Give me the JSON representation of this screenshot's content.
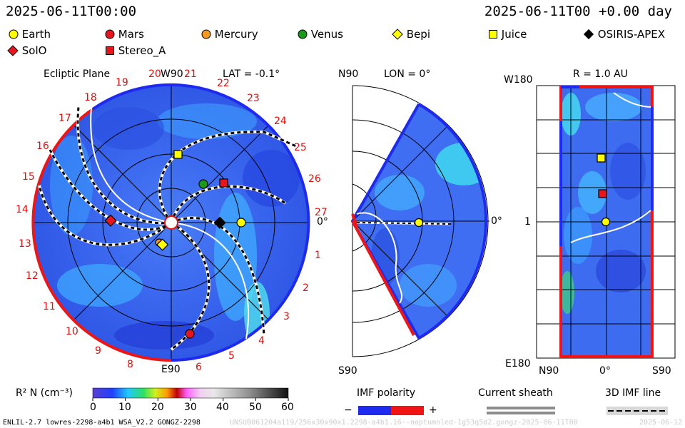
{
  "header": {
    "datetime_left": "2025-06-11T00:00",
    "datetime_right": "2025-06-11T00 +0.00 day"
  },
  "legend": [
    {
      "name": "Earth",
      "shape": "circle",
      "color": "#ffff00"
    },
    {
      "name": "Mars",
      "shape": "circle",
      "color": "#e8141e"
    },
    {
      "name": "Mercury",
      "shape": "circle",
      "color": "#f59a1f"
    },
    {
      "name": "Venus",
      "shape": "circle",
      "color": "#1a9a1a"
    },
    {
      "name": "Bepi",
      "shape": "diamond",
      "color": "#ffff00"
    },
    {
      "name": "Juice",
      "shape": "square",
      "color": "#ffff00"
    },
    {
      "name": "OSIRIS-APEX",
      "shape": "diamond",
      "color": "#000000"
    },
    {
      "name": "SolO",
      "shape": "diamond",
      "color": "#e8141e"
    },
    {
      "name": "Stereo_A",
      "shape": "square",
      "color": "#e8141e"
    }
  ],
  "chart_data": [
    {
      "type": "heatmap",
      "panel": "ecliptic",
      "title": "Ecliptic Plane",
      "lat_label": "LAT = -0.1°",
      "top_label": "W90",
      "bottom_label": "E90",
      "right_label": "0°",
      "rotation_labels": [
        "1",
        "2",
        "3",
        "4",
        "5",
        "6",
        "8",
        "9",
        "10",
        "11",
        "12",
        "13",
        "14",
        "15",
        "16",
        "17",
        "18",
        "19",
        "20",
        "21",
        "22",
        "23",
        "24",
        "25",
        "26",
        "27"
      ],
      "bodies": [
        "Earth",
        "Mars",
        "Mercury",
        "Venus",
        "Bepi",
        "Juice",
        "OSIRIS-APEX",
        "SolO",
        "Stereo_A"
      ]
    },
    {
      "type": "heatmap",
      "panel": "meridional",
      "lon_label": "LON = 0°",
      "top_label": "N90",
      "bottom_label": "S90",
      "right_label": "0°"
    },
    {
      "type": "heatmap",
      "panel": "spherical",
      "title": "R = 1.0 AU",
      "y_top": "W180",
      "y_mid": "1",
      "y_bottom": "E180",
      "x_left": "N90",
      "x_mid": "0°",
      "x_right": "S90"
    }
  ],
  "colorbar": {
    "label": "R² N (cm⁻³)",
    "ticks": [
      "0",
      "10",
      "20",
      "30",
      "40",
      "50",
      "60"
    ],
    "range": [
      0,
      60
    ]
  },
  "imf": {
    "title": "IMF polarity",
    "minus": "−",
    "plus": "+",
    "neg_color": "#1e2af0",
    "pos_color": "#f01414"
  },
  "sheath": {
    "title": "Current sheath"
  },
  "imfline": {
    "title": "3D IMF line"
  },
  "footer": {
    "model": "ENLIL-2.7 lowres-2298-a4b1 WSA_V2.2 GONGZ-2298",
    "run_id": "UNSUB061204a119/256x30x90x1.2298-a4b1.16--noptumnled-1g53q5d2.gongz-2025-06-11T00",
    "date_tail": "2025-06-12"
  }
}
